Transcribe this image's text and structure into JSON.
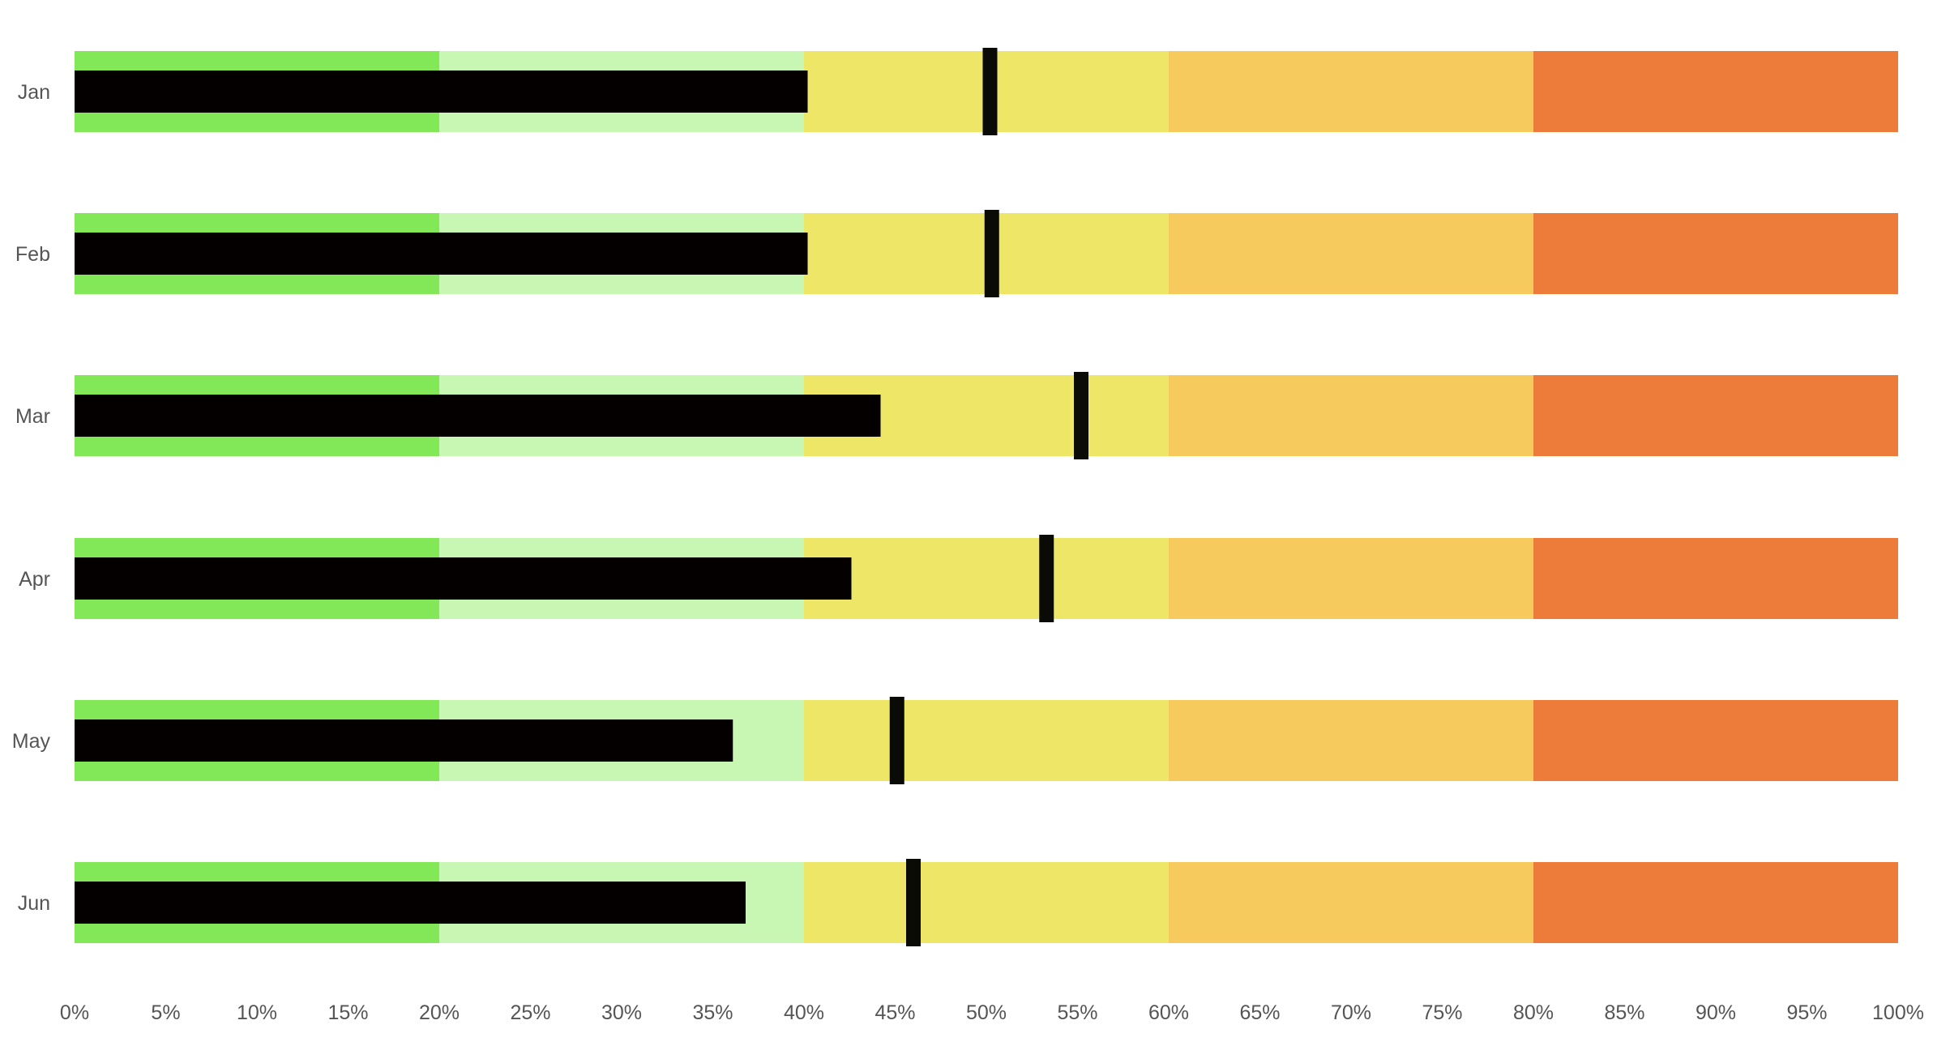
{
  "chart_data": {
    "type": "bullet",
    "title": "",
    "xlabel": "",
    "ylabel": "",
    "categories": [
      "Jan",
      "Feb",
      "Mar",
      "Apr",
      "May",
      "Jun"
    ],
    "xlim": [
      0,
      100
    ],
    "x_ticks": [
      "0%",
      "5%",
      "10%",
      "15%",
      "20%",
      "25%",
      "30%",
      "35%",
      "40%",
      "45%",
      "50%",
      "55%",
      "60%",
      "65%",
      "70%",
      "75%",
      "80%",
      "85%",
      "90%",
      "95%",
      "100%"
    ],
    "ranges": [
      {
        "from": 0,
        "to": 20,
        "color": "#82e858"
      },
      {
        "from": 20,
        "to": 40,
        "color": "#c8f7b4"
      },
      {
        "from": 40,
        "to": 60,
        "color": "#ede667"
      },
      {
        "from": 60,
        "to": 80,
        "color": "#f6ca5c"
      },
      {
        "from": 80,
        "to": 100,
        "color": "#ed7c3a"
      }
    ],
    "series": [
      {
        "values": [
          40.2,
          40.2,
          44.2,
          42.6,
          36.1,
          36.8
        ],
        "color": "#050000"
      },
      {
        "values": [
          50.2,
          50.3,
          55.2,
          53.3,
          45.1,
          46.0
        ],
        "color": "#0a0a06"
      }
    ],
    "grid": false,
    "legend": "none"
  }
}
